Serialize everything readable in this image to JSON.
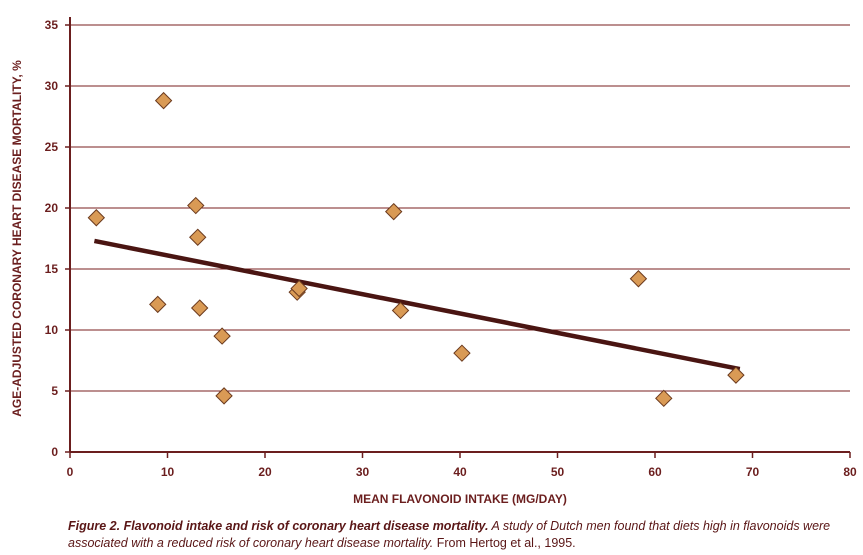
{
  "chart_data": {
    "type": "scatter",
    "title": "",
    "xlabel": "MEAN FLAVONOID INTAKE (MG/DAY)",
    "ylabel": "AGE-ADJUSTED CORONARY HEART DISEASE MORTALITY, %",
    "xlim": [
      0,
      80
    ],
    "ylim": [
      0,
      35
    ],
    "xticks": [
      "0",
      "10",
      "20",
      "30",
      "40",
      "50",
      "60",
      "70",
      "80"
    ],
    "yticks": [
      "0",
      "5",
      "10",
      "15",
      "20",
      "25",
      "30",
      "35"
    ],
    "grid": "horizontal",
    "points": [
      {
        "x": 2.7,
        "y": 19.2
      },
      {
        "x": 9.6,
        "y": 28.8
      },
      {
        "x": 9.0,
        "y": 12.1
      },
      {
        "x": 12.9,
        "y": 20.2
      },
      {
        "x": 13.1,
        "y": 17.6
      },
      {
        "x": 13.3,
        "y": 11.8
      },
      {
        "x": 15.6,
        "y": 9.5
      },
      {
        "x": 15.8,
        "y": 4.6
      },
      {
        "x": 23.3,
        "y": 13.1
      },
      {
        "x": 23.5,
        "y": 13.4
      },
      {
        "x": 33.2,
        "y": 19.7
      },
      {
        "x": 33.9,
        "y": 11.6
      },
      {
        "x": 40.2,
        "y": 8.1
      },
      {
        "x": 58.3,
        "y": 14.2
      },
      {
        "x": 60.9,
        "y": 4.4
      },
      {
        "x": 68.3,
        "y": 6.3
      }
    ],
    "trendline": {
      "x": [
        2.5,
        68.7
      ],
      "y": [
        17.3,
        6.8
      ]
    },
    "colors": {
      "axis": "#6b1e1e",
      "grid": "#7a1f1f",
      "marker_fill": "#d99a55",
      "marker_edge": "#6b3a1e",
      "trend": "#4a1512"
    }
  },
  "caption": {
    "bold": "Figure 2. Flavonoid intake and risk of coronary heart disease mortality.",
    "italic": " A study of Dutch men found that diets high in flavonoids were associated with a reduced risk of coronary heart disease mortality.",
    "source": " From Hertog et al., 1995."
  }
}
